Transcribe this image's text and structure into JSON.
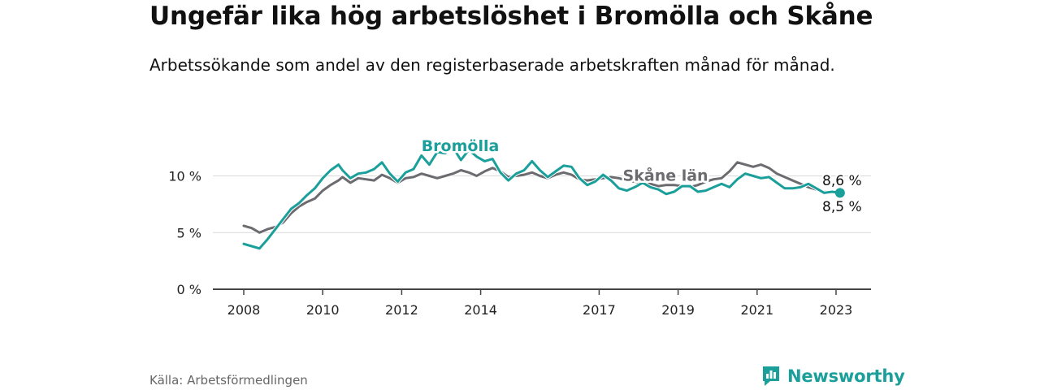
{
  "header": {
    "title": "Ungefär lika hög arbetslöshet i Bromölla och Skåne",
    "subtitle": "Arbetssökande som andel av den registerbaserade arbetskraften månad för månad."
  },
  "footer": {
    "source": "Källa: Arbetsförmedlingen",
    "brand": "Newsworthy",
    "brand_icon": "bar-chart-icon",
    "brand_color": "#1a9f9a"
  },
  "chart_data": {
    "type": "line",
    "title": "Ungefär lika hög arbetslöshet i Bromölla och Skåne",
    "xlabel": "",
    "ylabel": "",
    "xlim": [
      2007.7,
      2023.9
    ],
    "ylim": [
      0,
      12
    ],
    "y_ticks": [
      0,
      5,
      10
    ],
    "y_tick_labels": [
      "0 %",
      "5 %",
      "10 %"
    ],
    "x_ticks": [
      2008,
      2010,
      2012,
      2014,
      2017,
      2019,
      2021,
      2023
    ],
    "x_tick_labels": [
      "2008",
      "2010",
      "2012",
      "2014",
      "2017",
      "2019",
      "2021",
      "2023"
    ],
    "grid": true,
    "series": [
      {
        "name": "Skåne län",
        "color": "#6b6b70",
        "label_pos": [
          2017.6,
          10.0
        ],
        "end_label": "8,6 %",
        "points": [
          [
            2008.0,
            5.6
          ],
          [
            2008.2,
            5.4
          ],
          [
            2008.4,
            5.0
          ],
          [
            2008.6,
            5.3
          ],
          [
            2008.8,
            5.5
          ],
          [
            2009.0,
            5.9
          ],
          [
            2009.2,
            6.7
          ],
          [
            2009.4,
            7.3
          ],
          [
            2009.6,
            7.7
          ],
          [
            2009.8,
            8.0
          ],
          [
            2010.0,
            8.7
          ],
          [
            2010.2,
            9.2
          ],
          [
            2010.4,
            9.6
          ],
          [
            2010.5,
            9.9
          ],
          [
            2010.7,
            9.4
          ],
          [
            2010.9,
            9.8
          ],
          [
            2011.1,
            9.7
          ],
          [
            2011.3,
            9.6
          ],
          [
            2011.5,
            10.1
          ],
          [
            2011.7,
            9.8
          ],
          [
            2011.9,
            9.4
          ],
          [
            2012.1,
            9.8
          ],
          [
            2012.3,
            9.9
          ],
          [
            2012.5,
            10.2
          ],
          [
            2012.7,
            10.0
          ],
          [
            2012.9,
            9.8
          ],
          [
            2013.1,
            10.0
          ],
          [
            2013.3,
            10.2
          ],
          [
            2013.5,
            10.5
          ],
          [
            2013.7,
            10.3
          ],
          [
            2013.9,
            10.0
          ],
          [
            2014.1,
            10.4
          ],
          [
            2014.3,
            10.7
          ],
          [
            2014.5,
            10.4
          ],
          [
            2014.7,
            9.9
          ],
          [
            2014.9,
            10.0
          ],
          [
            2015.1,
            10.1
          ],
          [
            2015.3,
            10.3
          ],
          [
            2015.5,
            10.0
          ],
          [
            2015.7,
            9.8
          ],
          [
            2015.9,
            10.1
          ],
          [
            2016.1,
            10.3
          ],
          [
            2016.3,
            10.1
          ],
          [
            2016.5,
            9.7
          ],
          [
            2016.7,
            9.6
          ],
          [
            2016.9,
            9.7
          ],
          [
            2017.1,
            9.8
          ],
          [
            2017.3,
            9.9
          ],
          [
            2017.5,
            9.8
          ],
          [
            2017.7,
            9.6
          ],
          [
            2017.9,
            9.5
          ],
          [
            2018.1,
            9.4
          ],
          [
            2018.3,
            9.3
          ],
          [
            2018.5,
            9.1
          ],
          [
            2018.7,
            9.2
          ],
          [
            2018.9,
            9.2
          ],
          [
            2019.1,
            9.1
          ],
          [
            2019.3,
            9.0
          ],
          [
            2019.5,
            9.2
          ],
          [
            2019.7,
            9.5
          ],
          [
            2019.9,
            9.7
          ],
          [
            2020.1,
            9.8
          ],
          [
            2020.3,
            10.4
          ],
          [
            2020.5,
            11.2
          ],
          [
            2020.7,
            11.0
          ],
          [
            2020.9,
            10.8
          ],
          [
            2021.1,
            11.0
          ],
          [
            2021.3,
            10.7
          ],
          [
            2021.5,
            10.2
          ],
          [
            2021.7,
            9.9
          ],
          [
            2021.9,
            9.6
          ],
          [
            2022.1,
            9.3
          ],
          [
            2022.3,
            9.0
          ],
          [
            2022.5,
            8.8
          ],
          [
            2022.7,
            8.6
          ],
          [
            2022.9,
            8.6
          ],
          [
            2023.1,
            8.6
          ]
        ]
      },
      {
        "name": "Bromölla",
        "color": "#1a9f9a",
        "label_pos": [
          2012.5,
          12.6
        ],
        "end_label": "8,5 %",
        "points": [
          [
            2008.0,
            4.0
          ],
          [
            2008.2,
            3.8
          ],
          [
            2008.4,
            3.6
          ],
          [
            2008.6,
            4.4
          ],
          [
            2008.8,
            5.3
          ],
          [
            2009.0,
            6.2
          ],
          [
            2009.2,
            7.1
          ],
          [
            2009.4,
            7.6
          ],
          [
            2009.6,
            8.3
          ],
          [
            2009.8,
            8.9
          ],
          [
            2010.0,
            9.8
          ],
          [
            2010.2,
            10.5
          ],
          [
            2010.4,
            11.0
          ],
          [
            2010.5,
            10.5
          ],
          [
            2010.7,
            9.8
          ],
          [
            2010.9,
            10.2
          ],
          [
            2011.1,
            10.3
          ],
          [
            2011.3,
            10.6
          ],
          [
            2011.5,
            11.2
          ],
          [
            2011.7,
            10.2
          ],
          [
            2011.9,
            9.5
          ],
          [
            2012.1,
            10.3
          ],
          [
            2012.3,
            10.6
          ],
          [
            2012.5,
            11.8
          ],
          [
            2012.7,
            11.0
          ],
          [
            2012.9,
            12.1
          ],
          [
            2013.1,
            12.0
          ],
          [
            2013.3,
            12.5
          ],
          [
            2013.5,
            11.4
          ],
          [
            2013.7,
            12.3
          ],
          [
            2013.9,
            11.7
          ],
          [
            2014.1,
            11.3
          ],
          [
            2014.3,
            11.5
          ],
          [
            2014.5,
            10.3
          ],
          [
            2014.7,
            9.6
          ],
          [
            2014.9,
            10.2
          ],
          [
            2015.1,
            10.5
          ],
          [
            2015.3,
            11.3
          ],
          [
            2015.5,
            10.5
          ],
          [
            2015.7,
            9.9
          ],
          [
            2015.9,
            10.4
          ],
          [
            2016.1,
            10.9
          ],
          [
            2016.3,
            10.8
          ],
          [
            2016.5,
            9.8
          ],
          [
            2016.7,
            9.2
          ],
          [
            2016.9,
            9.5
          ],
          [
            2017.1,
            10.1
          ],
          [
            2017.3,
            9.6
          ],
          [
            2017.5,
            8.9
          ],
          [
            2017.7,
            8.7
          ],
          [
            2017.9,
            9.0
          ],
          [
            2018.1,
            9.4
          ],
          [
            2018.3,
            9.0
          ],
          [
            2018.5,
            8.8
          ],
          [
            2018.7,
            8.4
          ],
          [
            2018.9,
            8.6
          ],
          [
            2019.1,
            9.1
          ],
          [
            2019.3,
            9.1
          ],
          [
            2019.5,
            8.6
          ],
          [
            2019.7,
            8.7
          ],
          [
            2019.9,
            9.0
          ],
          [
            2020.1,
            9.3
          ],
          [
            2020.3,
            9.0
          ],
          [
            2020.5,
            9.7
          ],
          [
            2020.7,
            10.2
          ],
          [
            2020.9,
            10.0
          ],
          [
            2021.1,
            9.8
          ],
          [
            2021.3,
            9.9
          ],
          [
            2021.5,
            9.4
          ],
          [
            2021.7,
            8.9
          ],
          [
            2021.9,
            8.9
          ],
          [
            2022.1,
            9.0
          ],
          [
            2022.3,
            9.3
          ],
          [
            2022.5,
            8.9
          ],
          [
            2022.7,
            8.5
          ],
          [
            2022.9,
            8.6
          ],
          [
            2023.1,
            8.5
          ]
        ]
      }
    ]
  }
}
